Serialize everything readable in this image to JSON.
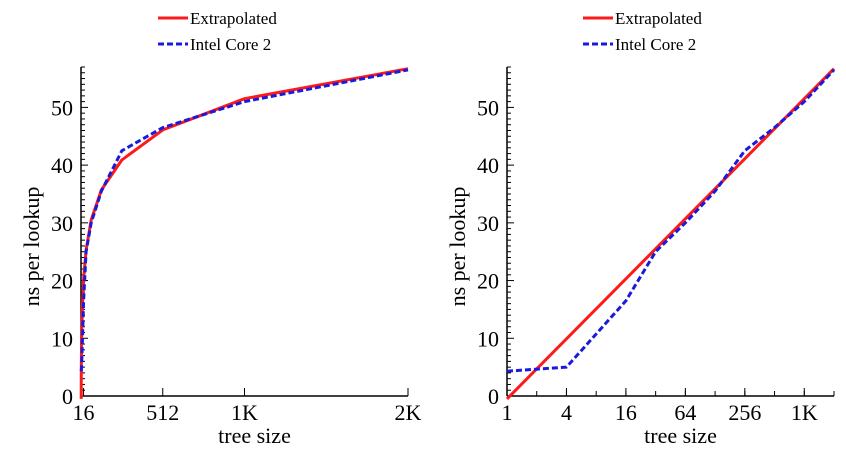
{
  "colors": {
    "extrapolated": "#ff1a1a",
    "intel": "#1a1adf",
    "axis": "#000000"
  },
  "chart_data": [
    {
      "type": "line",
      "xscale": "linear",
      "xlabel": "tree size",
      "ylabel": "ns per lookup",
      "xlim": [
        0,
        2048
      ],
      "ylim": [
        0,
        57
      ],
      "xticks": [
        {
          "value": 16,
          "label": "16"
        },
        {
          "value": 512,
          "label": "512"
        },
        {
          "value": 1024,
          "label": "1K"
        },
        {
          "value": 2048,
          "label": "2K"
        }
      ],
      "yticks": [
        {
          "value": 0,
          "label": "0"
        },
        {
          "value": 10,
          "label": "10"
        },
        {
          "value": 20,
          "label": "20"
        },
        {
          "value": 30,
          "label": "30"
        },
        {
          "value": 40,
          "label": "40"
        },
        {
          "value": 50,
          "label": "50"
        }
      ],
      "legend": "top-center",
      "series": [
        {
          "name": "Extrapolated",
          "color": "#ff1a1a",
          "style": "solid",
          "x": [
            1,
            2,
            4,
            8,
            16,
            32,
            64,
            128,
            256,
            512,
            1024,
            2048
          ],
          "y": [
            -0.5,
            4.6,
            9.8,
            15.0,
            20.2,
            25.3,
            30.5,
            35.7,
            40.9,
            46.1,
            51.5,
            56.7
          ]
        },
        {
          "name": "Intel Core 2",
          "color": "#1a1adf",
          "style": "dashed",
          "x": [
            1,
            4,
            16,
            32,
            64,
            128,
            256,
            512,
            1024,
            2048
          ],
          "y": [
            4.3,
            5.0,
            16.5,
            25.0,
            30.0,
            35.5,
            42.5,
            46.5,
            51.0,
            56.5
          ]
        }
      ]
    },
    {
      "type": "line",
      "xscale": "log2",
      "xlabel": "tree size",
      "ylabel": "ns per lookup",
      "xlim": [
        1,
        2048
      ],
      "ylim": [
        0,
        57
      ],
      "xticks": [
        {
          "value": 1,
          "label": "1"
        },
        {
          "value": 4,
          "label": "4"
        },
        {
          "value": 16,
          "label": "16"
        },
        {
          "value": 64,
          "label": "64"
        },
        {
          "value": 256,
          "label": "256"
        },
        {
          "value": 1024,
          "label": "1K"
        }
      ],
      "yticks": [
        {
          "value": 0,
          "label": "0"
        },
        {
          "value": 10,
          "label": "10"
        },
        {
          "value": 20,
          "label": "20"
        },
        {
          "value": 30,
          "label": "30"
        },
        {
          "value": 40,
          "label": "40"
        },
        {
          "value": 50,
          "label": "50"
        }
      ],
      "legend": "top-center",
      "series": [
        {
          "name": "Extrapolated",
          "color": "#ff1a1a",
          "style": "solid",
          "x": [
            1,
            2048
          ],
          "y": [
            -0.5,
            56.7
          ]
        },
        {
          "name": "Intel Core 2",
          "color": "#1a1adf",
          "style": "dashed",
          "x": [
            1,
            4,
            16,
            32,
            64,
            128,
            256,
            512,
            1024,
            2048
          ],
          "y": [
            4.3,
            5.0,
            16.5,
            25.0,
            30.0,
            35.5,
            42.5,
            46.5,
            51.0,
            56.5
          ]
        }
      ]
    }
  ]
}
